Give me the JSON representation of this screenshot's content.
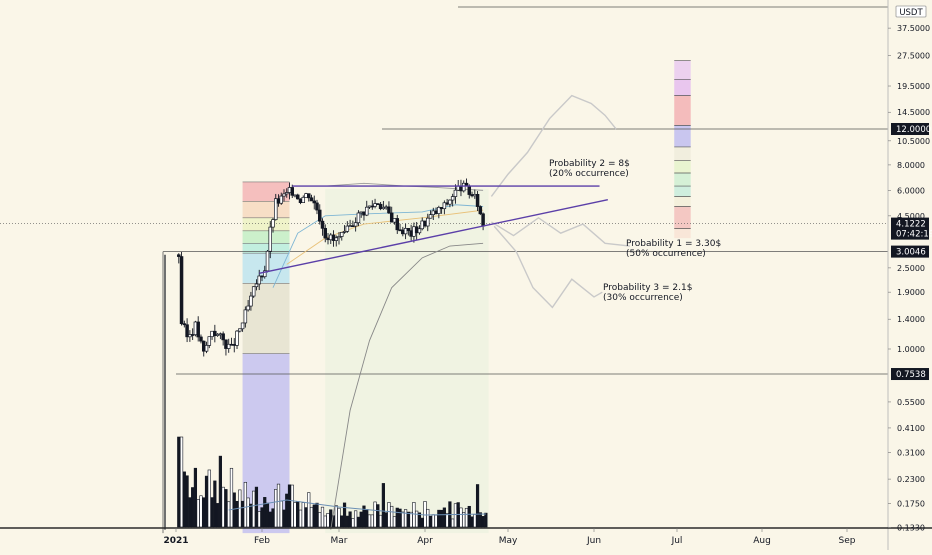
{
  "header": {
    "currency": "USDT"
  },
  "price_axis": {
    "ticks": [
      "37.5000",
      "27.5000",
      "19.5000",
      "14.5000",
      "10.5000",
      "8.0000",
      "6.0000",
      "4.5000",
      "2.5000",
      "1.9000",
      "1.4000",
      "1.0000",
      "0.5500",
      "0.4100",
      "0.3100",
      "0.2300",
      "0.1750",
      "0.1330"
    ],
    "highlighted": [
      {
        "label": "12.0000",
        "value": 12.0,
        "color": "#131722"
      },
      {
        "label": "4.1222",
        "sub": "07:42:19",
        "value": 4.1222,
        "color": "#131722"
      },
      {
        "label": "3.0046",
        "value": 3.0046,
        "color": "#131722"
      },
      {
        "label": "0.7538",
        "value": 0.7538,
        "color": "#131722"
      }
    ]
  },
  "time_axis": {
    "labels": [
      "2021",
      "Feb",
      "Mar",
      "Apr",
      "May",
      "Jun",
      "Jul",
      "Aug",
      "Sep"
    ]
  },
  "annotations": [
    {
      "line1": "Probability 2 = 8$",
      "line2": "(20% occurrence)"
    },
    {
      "line1": "Probability 1 = 3.30$",
      "line2": "(50% occurrence)"
    },
    {
      "line1": "Probability 3 = 2.1$",
      "line2": "(30% occurrence)"
    }
  ],
  "colors": {
    "background": "#faf6e8",
    "candle": "#131722",
    "trendline": "#5b3fa8",
    "projection": "#c9c9c9",
    "fib_blue": "#9b96e0"
  },
  "chart_data": {
    "type": "candlestick",
    "y_scale": "log",
    "ylim": [
      0.125,
      45
    ],
    "x_range": [
      "2021-01-01",
      "2021-09-20"
    ],
    "price_path": [
      [
        "2021-01-02",
        2.9
      ],
      [
        "2021-01-03",
        1.35
      ],
      [
        "2021-01-05",
        1.15
      ],
      [
        "2021-01-08",
        1.3
      ],
      [
        "2021-01-11",
        0.95
      ],
      [
        "2021-01-14",
        1.25
      ],
      [
        "2021-01-18",
        1.1
      ],
      [
        "2021-01-21",
        1.0
      ],
      [
        "2021-01-24",
        1.25
      ],
      [
        "2021-01-27",
        1.6
      ],
      [
        "2021-01-30",
        2.1
      ],
      [
        "2021-02-02",
        2.5
      ],
      [
        "2021-02-04",
        3.8
      ],
      [
        "2021-02-06",
        5.2
      ],
      [
        "2021-02-09",
        5.6
      ],
      [
        "2021-02-12",
        6.0
      ],
      [
        "2021-02-15",
        5.5
      ],
      [
        "2021-02-18",
        5.8
      ],
      [
        "2021-02-21",
        4.9
      ],
      [
        "2021-02-24",
        3.7
      ],
      [
        "2021-02-27",
        3.4
      ],
      [
        "2021-03-03",
        3.6
      ],
      [
        "2021-03-07",
        4.4
      ],
      [
        "2021-03-11",
        4.9
      ],
      [
        "2021-03-15",
        5.3
      ],
      [
        "2021-03-19",
        4.6
      ],
      [
        "2021-03-23",
        3.9
      ],
      [
        "2021-03-27",
        3.7
      ],
      [
        "2021-03-31",
        4.1
      ],
      [
        "2021-04-04",
        4.6
      ],
      [
        "2021-04-08",
        5.0
      ],
      [
        "2021-04-11",
        5.7
      ],
      [
        "2021-04-14",
        6.3
      ],
      [
        "2021-04-17",
        5.9
      ],
      [
        "2021-04-20",
        5.2
      ],
      [
        "2021-04-22",
        4.1
      ]
    ],
    "scenarios": [
      {
        "name": "Probability 2",
        "target": 8,
        "points": [
          [
            "2021-04-25",
            5.6
          ],
          [
            "2021-05-01",
            7.2
          ],
          [
            "2021-05-08",
            9.2
          ],
          [
            "2021-05-16",
            13.5
          ],
          [
            "2021-05-24",
            17.5
          ],
          [
            "2021-05-31",
            16.0
          ],
          [
            "2021-06-05",
            14.0
          ],
          [
            "2021-06-09",
            12.0
          ]
        ]
      },
      {
        "name": "Probability 1",
        "target": 3.3,
        "points": [
          [
            "2021-04-25",
            4.2
          ],
          [
            "2021-05-03",
            3.6
          ],
          [
            "2021-05-12",
            4.4
          ],
          [
            "2021-05-20",
            3.7
          ],
          [
            "2021-05-28",
            4.1
          ],
          [
            "2021-06-05",
            3.3
          ],
          [
            "2021-06-14",
            3.2
          ]
        ]
      },
      {
        "name": "Probability 3",
        "target": 2.1,
        "points": [
          [
            "2021-04-26",
            4.0
          ],
          [
            "2021-05-04",
            3.0
          ],
          [
            "2021-05-10",
            2.0
          ],
          [
            "2021-05-17",
            1.6
          ],
          [
            "2021-05-24",
            2.2
          ],
          [
            "2021-06-01",
            1.8
          ],
          [
            "2021-06-04",
            1.9
          ]
        ]
      }
    ]
  }
}
